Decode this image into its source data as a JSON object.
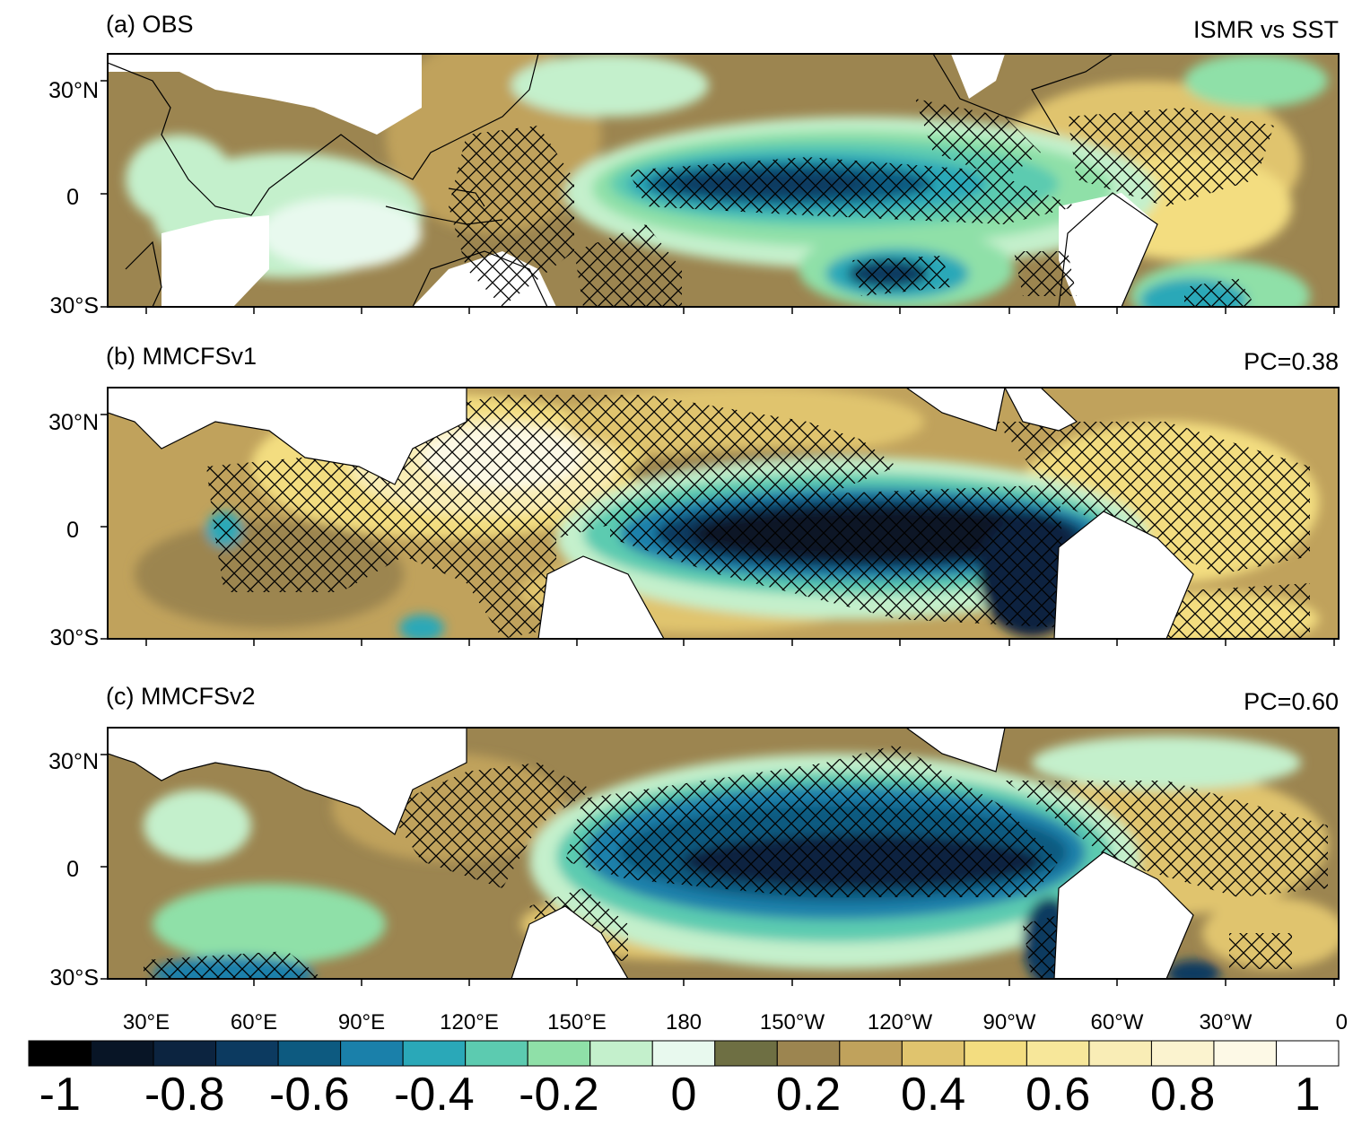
{
  "figure": {
    "right_title": "ISMR vs SST",
    "panels": [
      {
        "id": "a",
        "title": "(a) OBS",
        "right_label": ""
      },
      {
        "id": "b",
        "title": "(b) MMCFSv1",
        "right_label": "PC=0.38"
      },
      {
        "id": "c",
        "title": "(c) MMCFSv2",
        "right_label": "PC=0.60"
      }
    ],
    "lat_labels": [
      "30°N",
      "0",
      "30°S"
    ],
    "lon_labels": [
      "30°E",
      "60°E",
      "90°E",
      "120°E",
      "150°E",
      "180",
      "150°W",
      "120°W",
      "90°W",
      "60°W",
      "30°W",
      "0"
    ],
    "colorbar": {
      "labels": [
        "-1",
        "-0.8",
        "-0.6",
        "-0.4",
        "-0.2",
        "0",
        "0.2",
        "0.4",
        "0.6",
        "0.8",
        "1"
      ],
      "levels": [
        -1,
        -0.9,
        -0.8,
        -0.7,
        -0.6,
        -0.5,
        -0.4,
        -0.3,
        -0.2,
        -0.1,
        0,
        0.1,
        0.2,
        0.3,
        0.4,
        0.5,
        0.6,
        0.7,
        0.8,
        0.9,
        1
      ],
      "colors": [
        "#000000",
        "#081526",
        "#0c2440",
        "#0c3a60",
        "#0d5a80",
        "#1a80aa",
        "#2aa8b8",
        "#5ccbb0",
        "#8fe0a8",
        "#c4f0cc",
        "#e8f9ee",
        "#6e6f43",
        "#9c8550",
        "#c0a25c",
        "#e0c46e",
        "#f3dd80",
        "#f7e79a",
        "#f9edb6",
        "#fbf3cf",
        "#fdf9e6",
        "#ffffff"
      ]
    }
  }
}
